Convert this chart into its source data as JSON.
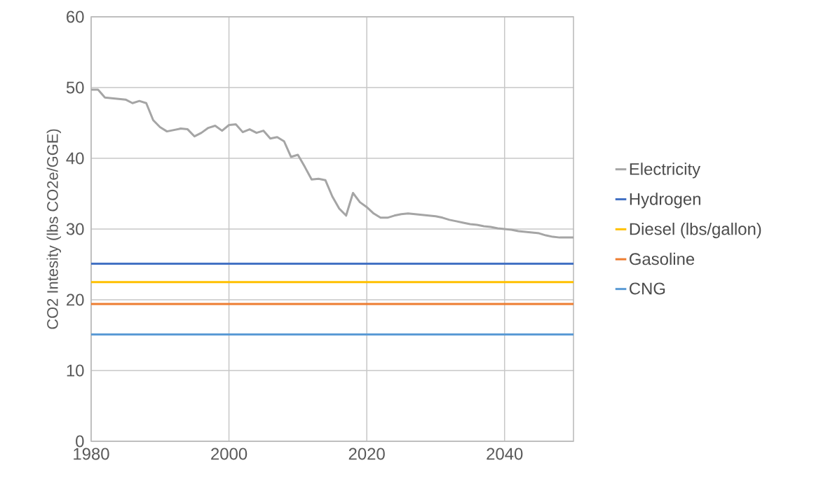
{
  "chart_data": {
    "type": "line",
    "ylabel": "CO2 Intesity (lbs CO2e/GGE)",
    "xlim": [
      1980,
      2050
    ],
    "ylim": [
      0,
      60
    ],
    "xticks": [
      1980,
      2000,
      2020,
      2040
    ],
    "yticks": [
      0,
      10,
      20,
      30,
      40,
      50,
      60
    ],
    "grid": true,
    "legend": "right",
    "marker": "none",
    "line_style": "solid",
    "series": [
      {
        "name": "Electricity",
        "color": "#a5a5a5",
        "x": [
          1980,
          1981,
          1982,
          1983,
          1984,
          1985,
          1986,
          1987,
          1988,
          1989,
          1990,
          1991,
          1992,
          1993,
          1994,
          1995,
          1996,
          1997,
          1998,
          1999,
          2000,
          2001,
          2002,
          2003,
          2004,
          2005,
          2006,
          2007,
          2008,
          2009,
          2010,
          2011,
          2012,
          2013,
          2014,
          2015,
          2016,
          2017,
          2018,
          2019,
          2020,
          2021,
          2022,
          2023,
          2024,
          2025,
          2026,
          2027,
          2028,
          2029,
          2030,
          2031,
          2032,
          2033,
          2034,
          2035,
          2036,
          2037,
          2038,
          2039,
          2040,
          2041,
          2042,
          2043,
          2044,
          2045,
          2046,
          2047,
          2048,
          2049,
          2050
        ],
        "values": [
          49.7,
          49.7,
          48.6,
          48.5,
          48.4,
          48.3,
          47.8,
          48.1,
          47.8,
          45.4,
          44.4,
          43.8,
          44.0,
          44.2,
          44.1,
          43.1,
          43.6,
          44.3,
          44.6,
          43.9,
          44.7,
          44.8,
          43.7,
          44.1,
          43.6,
          43.9,
          42.8,
          43.0,
          42.4,
          40.2,
          40.5,
          38.8,
          37.0,
          37.1,
          36.9,
          34.6,
          32.9,
          31.9,
          35.1,
          33.8,
          33.1,
          32.2,
          31.6,
          31.6,
          31.9,
          32.1,
          32.2,
          32.1,
          32.0,
          31.9,
          31.8,
          31.6,
          31.3,
          31.1,
          30.9,
          30.7,
          30.6,
          30.4,
          30.3,
          30.1,
          30.0,
          29.9,
          29.7,
          29.6,
          29.5,
          29.4,
          29.1,
          28.9,
          28.8,
          28.8,
          28.8
        ]
      },
      {
        "name": "Hydrogen",
        "color": "#4472c4",
        "x": [
          1980,
          2050
        ],
        "values": [
          25.1,
          25.1
        ]
      },
      {
        "name": "Diesel (lbs/gallon)",
        "color": "#ffc000",
        "x": [
          1980,
          2050
        ],
        "values": [
          22.5,
          22.5
        ]
      },
      {
        "name": "Gasoline",
        "color": "#ed7d31",
        "x": [
          1980,
          2050
        ],
        "values": [
          19.4,
          19.4
        ]
      },
      {
        "name": "CNG",
        "color": "#5b9bd5",
        "x": [
          1980,
          2050
        ],
        "values": [
          15.1,
          15.1
        ]
      }
    ]
  }
}
